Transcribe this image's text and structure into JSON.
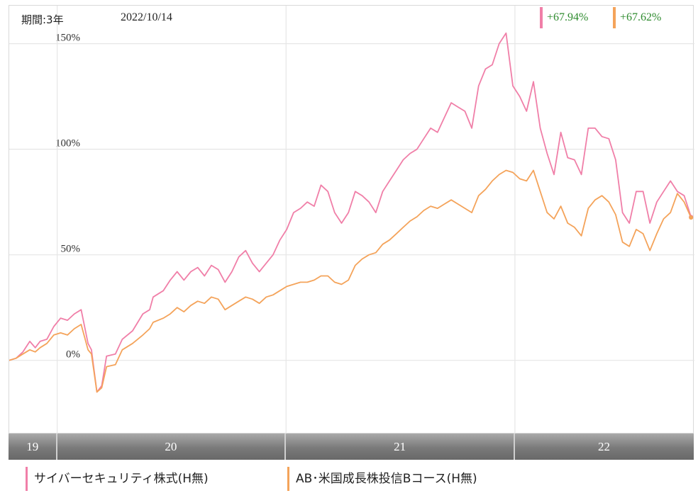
{
  "header": {
    "period": "期間:3年",
    "date": "2022/10/14"
  },
  "returns": [
    {
      "value": "+67.94%",
      "color": "#f07fa8"
    },
    {
      "value": "+67.62%",
      "color": "#f4a35a"
    }
  ],
  "legend": [
    {
      "label": "サイバーセキュリティ株式(H無)",
      "color": "#f07fa8"
    },
    {
      "label": "AB･米国成長株投信Bコース(H無)",
      "color": "#f4a35a"
    }
  ],
  "chart_data": {
    "type": "line",
    "x_range": [
      0,
      100
    ],
    "y_range": [
      -35,
      168
    ],
    "y_ticks": [
      {
        "value": 0,
        "label": "0%"
      },
      {
        "value": 50,
        "label": "50%"
      },
      {
        "value": 100,
        "label": "100%"
      },
      {
        "value": 150,
        "label": "150%"
      }
    ],
    "year_labels": [
      {
        "label": "19",
        "start": 0,
        "end": 7
      },
      {
        "label": "20",
        "start": 7,
        "end": 40.4
      },
      {
        "label": "21",
        "start": 40.4,
        "end": 73.8
      },
      {
        "label": "22",
        "start": 73.8,
        "end": 100
      }
    ],
    "series": [
      {
        "name": "サイバーセキュリティ株式(H無)",
        "color": "#f07fa8",
        "x": [
          0,
          1,
          2,
          3,
          3.8,
          4.5,
          5.5,
          6.5,
          7.5,
          8.5,
          9.5,
          10.5,
          11.5,
          12,
          12.8,
          13.5,
          14.2,
          15.5,
          16.5,
          18,
          19.5,
          20.5,
          21,
          22.5,
          23.5,
          24.5,
          25.5,
          26.5,
          27.5,
          28.5,
          29.5,
          30.5,
          31.5,
          32.5,
          33.5,
          34.5,
          35.5,
          36.5,
          37.5,
          38.5,
          39.5,
          40.5,
          41.5,
          42.5,
          43.5,
          44.5,
          45.5,
          46.5,
          47.5,
          48.5,
          49.5,
          50.5,
          51.5,
          52.5,
          53.5,
          54.5,
          55.5,
          56.5,
          57.5,
          58.5,
          59.5,
          60.5,
          61.5,
          62.5,
          63.5,
          64.5,
          65.5,
          66.5,
          67.5,
          68.5,
          69.5,
          70.5,
          71.5,
          72.5,
          73.5,
          74.5,
          75.5,
          76.5,
          77.5,
          78.5,
          79.5,
          80.5,
          81.5,
          82.5,
          83.5,
          84.5,
          85.5,
          86.5,
          87.5,
          88.5,
          89.5,
          90.5,
          91.5,
          92.5,
          93.5,
          94.5,
          95.5,
          96.5,
          97.5,
          98.5,
          99.5
        ],
        "y": [
          0,
          1,
          4,
          9,
          6,
          9,
          10,
          16,
          20,
          19,
          22,
          24,
          8,
          5,
          -15,
          -12,
          2,
          3,
          10,
          14,
          22,
          24,
          30,
          33,
          38,
          42,
          38,
          42,
          44,
          40,
          45,
          43,
          37,
          42,
          49,
          52,
          46,
          42,
          46,
          50,
          57,
          62,
          70,
          72,
          75,
          73,
          83,
          80,
          70,
          65,
          70,
          80,
          78,
          75,
          70,
          80,
          85,
          90,
          95,
          98,
          100,
          105,
          110,
          108,
          115,
          122,
          120,
          118,
          110,
          130,
          138,
          140,
          150,
          155,
          130,
          125,
          118,
          132,
          110,
          98,
          88,
          108,
          96,
          95,
          88,
          110,
          110,
          106,
          105,
          95,
          70,
          65,
          80,
          80,
          65,
          75,
          80,
          85,
          80,
          78,
          67.94
        ],
        "note": "approximate"
      },
      {
        "name": "AB･米国成長株投信Bコース(H無)",
        "color": "#f4a35a",
        "x": [
          0,
          1,
          2,
          3,
          3.8,
          4.5,
          5.5,
          6.5,
          7.5,
          8.5,
          9.5,
          10.5,
          11.5,
          12,
          12.8,
          13.5,
          14.2,
          15.5,
          16.5,
          18,
          19.5,
          20.5,
          21,
          22.5,
          23.5,
          24.5,
          25.5,
          26.5,
          27.5,
          28.5,
          29.5,
          30.5,
          31.5,
          32.5,
          33.5,
          34.5,
          35.5,
          36.5,
          37.5,
          38.5,
          39.5,
          40.5,
          41.5,
          42.5,
          43.5,
          44.5,
          45.5,
          46.5,
          47.5,
          48.5,
          49.5,
          50.5,
          51.5,
          52.5,
          53.5,
          54.5,
          55.5,
          56.5,
          57.5,
          58.5,
          59.5,
          60.5,
          61.5,
          62.5,
          63.5,
          64.5,
          65.5,
          66.5,
          67.5,
          68.5,
          69.5,
          70.5,
          71.5,
          72.5,
          73.5,
          74.5,
          75.5,
          76.5,
          77.5,
          78.5,
          79.5,
          80.5,
          81.5,
          82.5,
          83.5,
          84.5,
          85.5,
          86.5,
          87.5,
          88.5,
          89.5,
          90.5,
          91.5,
          92.5,
          93.5,
          94.5,
          95.5,
          96.5,
          97.5,
          98.5,
          99.5
        ],
        "y": [
          0,
          1,
          3,
          5,
          4,
          6,
          8,
          12,
          13,
          12,
          15,
          17,
          5,
          3,
          -15,
          -13,
          -3,
          -2,
          5,
          8,
          12,
          15,
          18,
          20,
          22,
          25,
          23,
          26,
          28,
          27,
          30,
          29,
          24,
          26,
          28,
          30,
          29,
          27,
          30,
          31,
          33,
          35,
          36,
          37,
          37,
          38,
          40,
          40,
          37,
          36,
          38,
          45,
          48,
          50,
          51,
          55,
          57,
          60,
          63,
          66,
          68,
          71,
          73,
          72,
          74,
          76,
          74,
          72,
          70,
          78,
          81,
          85,
          88,
          90,
          89,
          86,
          85,
          90,
          80,
          70,
          67,
          73,
          65,
          63,
          59,
          72,
          76,
          78,
          75,
          69,
          56,
          54,
          62,
          60,
          52,
          60,
          67,
          70,
          79,
          75,
          67.62
        ],
        "note": "approximate"
      }
    ]
  }
}
